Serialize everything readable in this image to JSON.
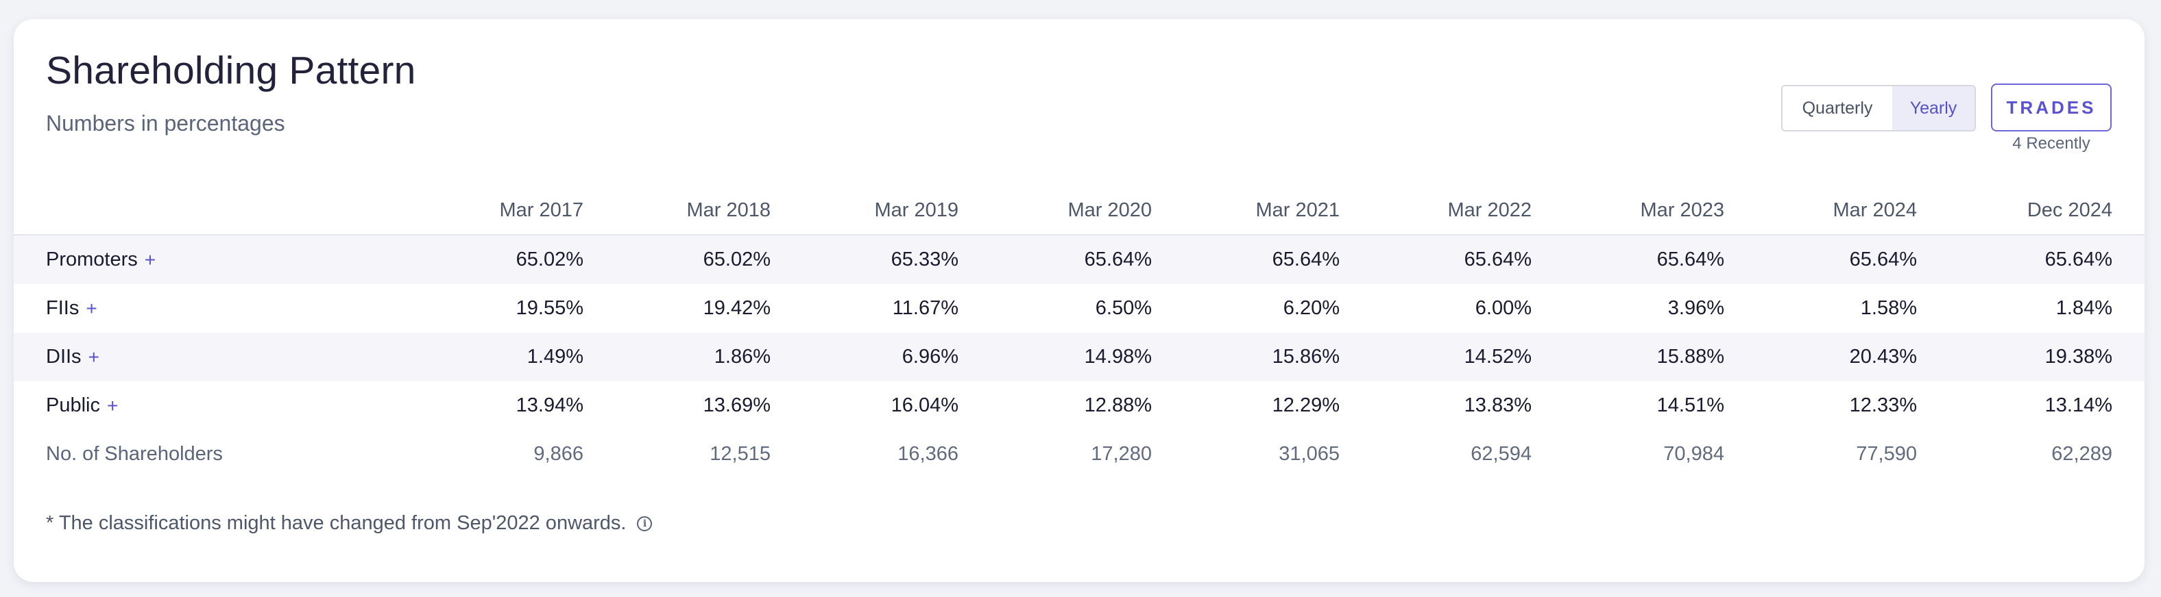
{
  "header": {
    "title": "Shareholding Pattern",
    "subtitle": "Numbers in percentages"
  },
  "controls": {
    "period_options": [
      "Quarterly",
      "Yearly"
    ],
    "selected_period": "Yearly",
    "trades_label": "TRADES",
    "trades_recent": "4 Recently"
  },
  "table": {
    "columns": [
      "Mar 2017",
      "Mar 2018",
      "Mar 2019",
      "Mar 2020",
      "Mar 2021",
      "Mar 2022",
      "Mar 2023",
      "Mar 2024",
      "Dec 2024"
    ],
    "rows": [
      {
        "label": "Promoters",
        "expandable": "+",
        "values": [
          "65.02%",
          "65.02%",
          "65.33%",
          "65.64%",
          "65.64%",
          "65.64%",
          "65.64%",
          "65.64%",
          "65.64%"
        ]
      },
      {
        "label": "FIIs",
        "expandable": "+",
        "values": [
          "19.55%",
          "19.42%",
          "11.67%",
          "6.50%",
          "6.20%",
          "6.00%",
          "3.96%",
          "1.58%",
          "1.84%"
        ]
      },
      {
        "label": "DIIs",
        "expandable": "+",
        "values": [
          "1.49%",
          "1.86%",
          "6.96%",
          "14.98%",
          "15.86%",
          "14.52%",
          "15.88%",
          "20.43%",
          "19.38%"
        ]
      },
      {
        "label": "Public",
        "expandable": "+",
        "values": [
          "13.94%",
          "13.69%",
          "16.04%",
          "12.88%",
          "12.29%",
          "13.83%",
          "14.51%",
          "12.33%",
          "13.14%"
        ]
      },
      {
        "label": "No. of Shareholders",
        "values": [
          "9,866",
          "12,515",
          "16,366",
          "17,280",
          "31,065",
          "62,594",
          "70,984",
          "77,590",
          "62,289"
        ]
      }
    ]
  },
  "footnote": {
    "text": "* The classifications might have changed from Sep'2022 onwards.",
    "icon": "info-icon"
  },
  "colors": {
    "accent": "#5a52cf",
    "selected_bg": "#ececf8",
    "shaded_row": "#f6f6fa"
  }
}
